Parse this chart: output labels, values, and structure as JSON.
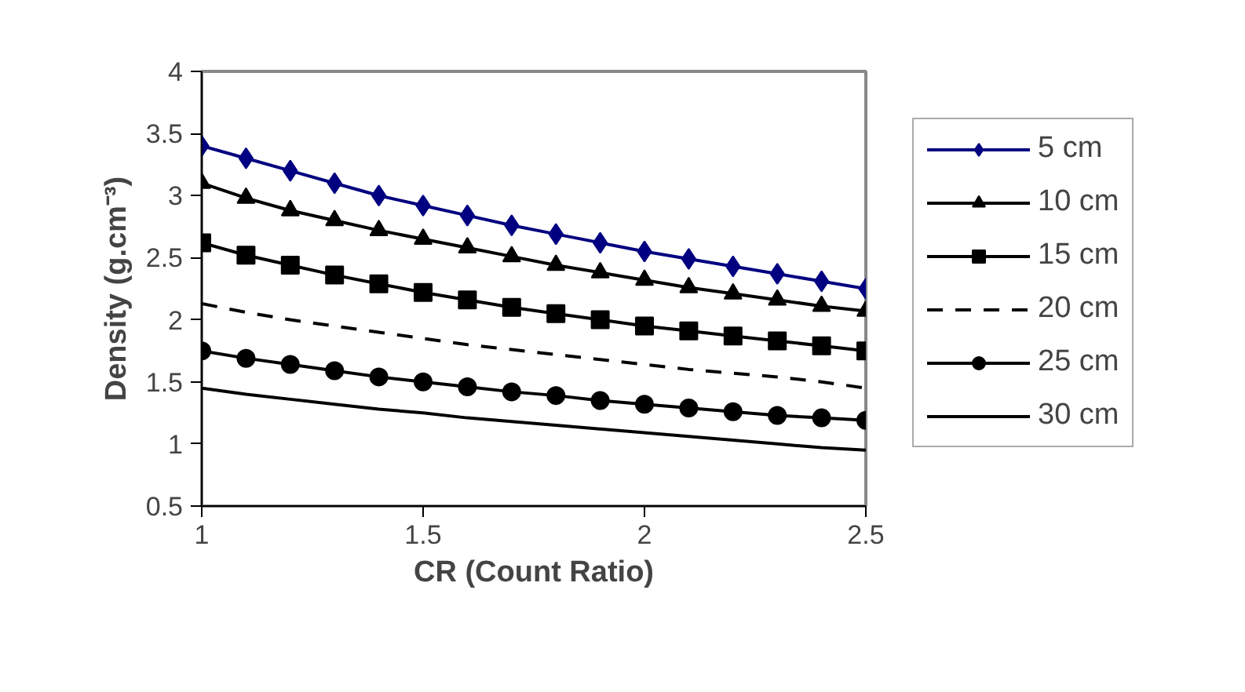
{
  "chart_data": {
    "type": "line",
    "xlabel": "CR (Count Ratio)",
    "ylabel": "Density (g.cm⁻³)",
    "x": [
      1,
      1.1,
      1.2,
      1.3,
      1.4,
      1.5,
      1.6,
      1.7,
      1.8,
      1.9,
      2,
      2.1,
      2.2,
      2.3,
      2.4,
      2.5
    ],
    "xlim": [
      1,
      2.5
    ],
    "xticks": [
      1,
      1.5,
      2,
      2.5
    ],
    "ylim": [
      0.5,
      4
    ],
    "yticks": [
      0.5,
      1,
      1.5,
      2,
      2.5,
      3,
      3.5,
      4
    ],
    "grid": false,
    "legend": "right",
    "series": [
      {
        "name": "5 cm",
        "color": "#000080",
        "marker": "diamond",
        "line_style": "solid",
        "values": [
          3.4,
          3.3,
          3.2,
          3.1,
          3.0,
          2.92,
          2.84,
          2.76,
          2.69,
          2.62,
          2.55,
          2.49,
          2.43,
          2.37,
          2.31,
          2.25
        ]
      },
      {
        "name": "10 cm",
        "color": "#000000",
        "marker": "triangle",
        "line_style": "solid",
        "values": [
          3.1,
          2.98,
          2.88,
          2.8,
          2.72,
          2.65,
          2.58,
          2.51,
          2.44,
          2.38,
          2.32,
          2.26,
          2.21,
          2.16,
          2.11,
          2.07
        ]
      },
      {
        "name": "15 cm",
        "color": "#000000",
        "marker": "square",
        "line_style": "solid",
        "values": [
          2.62,
          2.52,
          2.44,
          2.36,
          2.29,
          2.22,
          2.16,
          2.1,
          2.05,
          2.0,
          1.95,
          1.91,
          1.87,
          1.83,
          1.79,
          1.75
        ]
      },
      {
        "name": "20 cm",
        "color": "#000000",
        "marker": "none",
        "line_style": "dashed",
        "values": [
          2.13,
          2.06,
          2.0,
          1.95,
          1.9,
          1.85,
          1.8,
          1.76,
          1.72,
          1.68,
          1.64,
          1.6,
          1.57,
          1.54,
          1.5,
          1.45
        ]
      },
      {
        "name": "25 cm",
        "color": "#000000",
        "marker": "circle",
        "line_style": "solid",
        "values": [
          1.75,
          1.69,
          1.64,
          1.59,
          1.54,
          1.5,
          1.46,
          1.42,
          1.39,
          1.35,
          1.32,
          1.29,
          1.26,
          1.23,
          1.21,
          1.19
        ]
      },
      {
        "name": "30 cm",
        "color": "#000000",
        "marker": "none",
        "line_style": "solid",
        "values": [
          1.45,
          1.4,
          1.36,
          1.32,
          1.28,
          1.25,
          1.21,
          1.18,
          1.15,
          1.12,
          1.09,
          1.06,
          1.03,
          1.0,
          0.97,
          0.95
        ]
      }
    ]
  }
}
